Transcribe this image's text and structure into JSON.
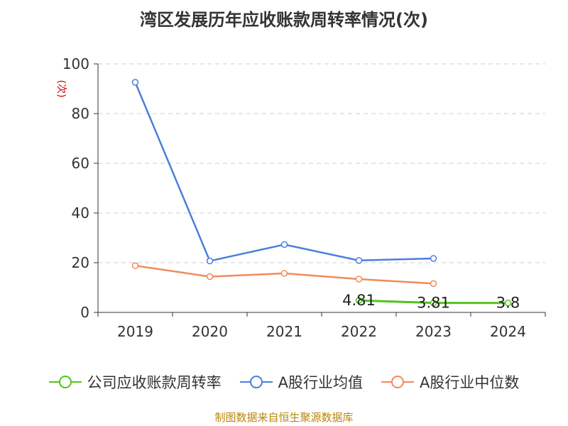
{
  "title": "湾区发展历年应收账款周转率情况(次)",
  "source": "制图数据来自恒生聚源数据库",
  "chart_data": {
    "type": "line",
    "title": "湾区发展历年应收账款周转率情况(次)",
    "ylabel": "(次)",
    "xlabel": "",
    "categories": [
      "2019",
      "2020",
      "2021",
      "2022",
      "2023",
      "2024"
    ],
    "ylim": [
      0,
      100
    ],
    "yticks": [
      0,
      20,
      40,
      60,
      80,
      100
    ],
    "grid": true,
    "legend_position": "bottom",
    "series": [
      {
        "name": "公司应收账款周转率",
        "color": "#52c41a",
        "values": [
          null,
          null,
          null,
          4.81,
          3.81,
          3.8
        ],
        "labels": [
          null,
          null,
          null,
          "4.81",
          "3.81",
          "3.8"
        ]
      },
      {
        "name": "A股行业均值",
        "color": "#4a7fdb",
        "values": [
          92.6,
          20.7,
          27.3,
          20.9,
          21.7,
          null
        ]
      },
      {
        "name": "A股行业中位数",
        "color": "#f28a5a",
        "values": [
          18.8,
          14.4,
          15.7,
          13.4,
          11.6,
          null
        ]
      }
    ]
  }
}
